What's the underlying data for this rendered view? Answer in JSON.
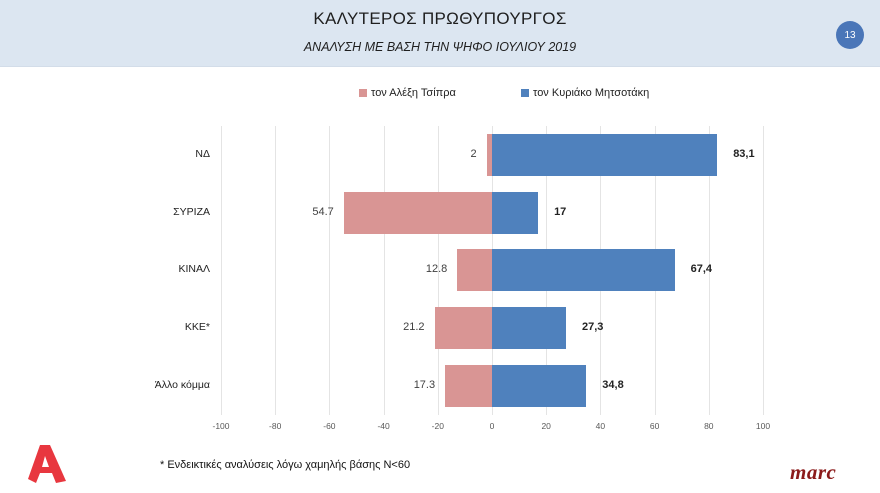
{
  "header": {
    "title": "ΚΑΛΥΤΕΡΟΣ ΠΡΩΘΥΠΟΥΡΓΟΣ",
    "subtitle": "ΑΝΑΛΥΣΗ ΜΕ ΒΑΣΗ ΤΗΝ ΨΗΦΟ ΙΟΥΛΙΟΥ 2019",
    "page_number": "13"
  },
  "legend": [
    {
      "label": "τον Αλέξη Τσίπρα",
      "color": "#d99594"
    },
    {
      "label": "τον Κυριάκο Μητσοτάκη",
      "color": "#4f81bd"
    }
  ],
  "footnote": "* Ενδεικτικές αναλύσεις λόγω χαμηλής βάσης Ν<60",
  "logos": {
    "left": "alpha-logo",
    "right": "marc"
  },
  "chart_data": {
    "type": "bar",
    "orientation": "horizontal-diverging",
    "title": "ΚΑΛΥΤΕΡΟΣ ΠΡΩΘΥΠΟΥΡΓΟΣ",
    "subtitle": "ΑΝΑΛΥΣΗ ΜΕ ΒΑΣΗ ΤΗΝ ΨΗΦΟ ΙΟΥΛΙΟΥ 2019",
    "categories": [
      "ΝΔ",
      "ΣΥΡΙΖΑ",
      "ΚΙΝΑΛ",
      "ΚΚΕ*",
      "Άλλο κόμμα"
    ],
    "series": [
      {
        "name": "τον Αλέξη Τσίπρα",
        "color": "#d99594",
        "values": [
          -2,
          -54.7,
          -12.8,
          -21.2,
          -17.3
        ],
        "labels": [
          "2",
          "54.7",
          "12.8",
          "21.2",
          "17.3"
        ]
      },
      {
        "name": "τον Κυριάκο Μητσοτάκη",
        "color": "#4f81bd",
        "values": [
          83.1,
          17,
          67.4,
          27.3,
          34.8
        ],
        "labels": [
          "83,1",
          "17",
          "67,4",
          "27,3",
          "34,8"
        ]
      }
    ],
    "xticks": [
      "-100",
      "-80",
      "-60",
      "-40",
      "-20",
      "0",
      "20",
      "40",
      "60",
      "80",
      "100"
    ],
    "xlim": [
      -100,
      100
    ],
    "grid": true,
    "legend_position": "top",
    "xlabel": "",
    "ylabel": ""
  }
}
